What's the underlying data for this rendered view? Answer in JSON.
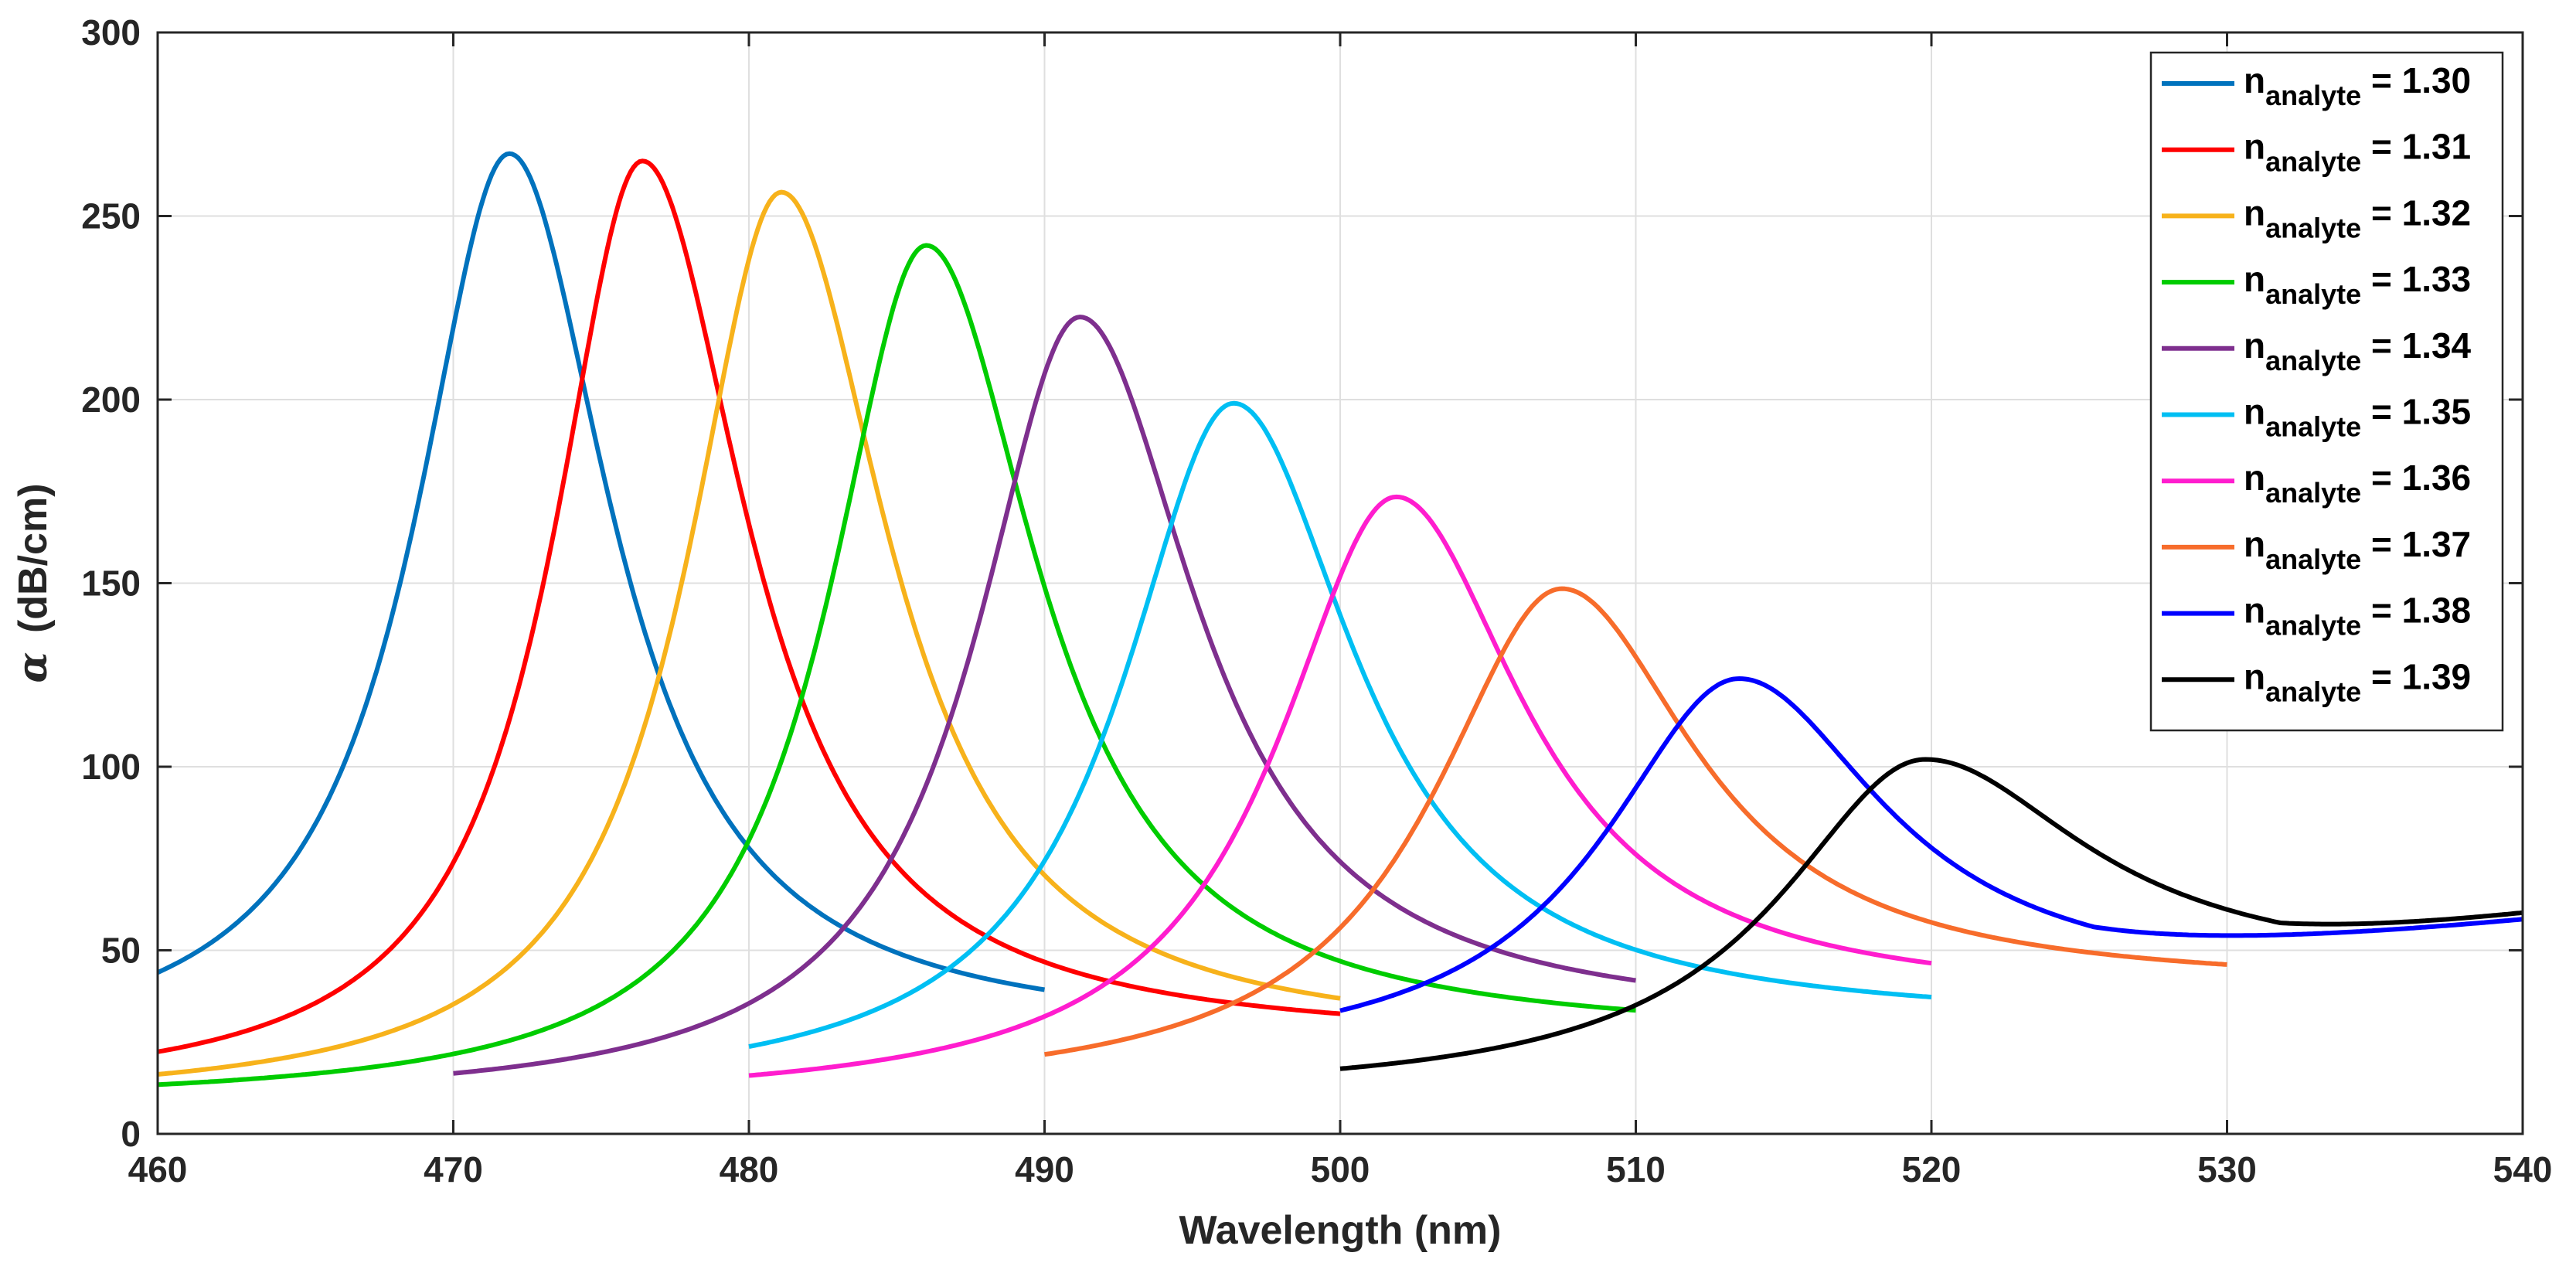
{
  "chart_data": {
    "type": "line",
    "title": "",
    "xlabel": "Wavelength (nm)",
    "ylabel_symbol": "α",
    "ylabel_unit": "(dB/cm)",
    "xlim": [
      460,
      540
    ],
    "ylim": [
      0,
      300
    ],
    "xticks": [
      460,
      470,
      480,
      490,
      500,
      510,
      520,
      530,
      540
    ],
    "yticks": [
      0,
      50,
      100,
      150,
      200,
      250,
      300
    ],
    "grid": true,
    "legend_placement": "top-right",
    "series": [
      {
        "name": "n_analyte = 1.30",
        "legend_main": "n",
        "legend_sub": "analyte",
        "legend_value": " = 1.30",
        "color": "#0072BD",
        "x_range": [
          460,
          490
        ],
        "peak_x": 471.9,
        "peak_y": 267,
        "width_left": 3.9,
        "width_right": 4.2,
        "base_left": 20,
        "base_right": 27,
        "slope": 0
      },
      {
        "name": "n_analyte = 1.31",
        "legend_main": "n",
        "legend_sub": "analyte",
        "legend_value": " = 1.31",
        "color": "#FF0000",
        "x_range": [
          460,
          500
        ],
        "peak_x": 476.4,
        "peak_y": 265,
        "width_left": 3.7,
        "width_right": 4.3,
        "base_left": 10,
        "base_right": 25,
        "slope": 0
      },
      {
        "name": "n_analyte = 1.32",
        "legend_main": "n",
        "legend_sub": "analyte",
        "legend_value": " = 1.32",
        "color": "#F7B21B",
        "x_range": [
          460,
          500
        ],
        "peak_x": 481.1,
        "peak_y": 256.5,
        "width_left": 3.9,
        "width_right": 4.4,
        "base_left": 8,
        "base_right": 25,
        "slope": 0
      },
      {
        "name": "n_analyte = 1.33",
        "legend_main": "n",
        "legend_sub": "analyte",
        "legend_value": " = 1.33",
        "color": "#00CC00",
        "x_range": [
          460,
          510
        ],
        "peak_x": 486.0,
        "peak_y": 242,
        "width_left": 4.0,
        "width_right": 4.6,
        "base_left": 8,
        "base_right": 26,
        "slope": 0
      },
      {
        "name": "n_analyte = 1.34",
        "legend_main": "n",
        "legend_sub": "analyte",
        "legend_value": " = 1.34",
        "color": "#7E2F8E",
        "x_range": [
          470,
          510
        ],
        "peak_x": 491.2,
        "peak_y": 222.5,
        "width_left": 4.3,
        "width_right": 4.8,
        "base_left": 8,
        "base_right": 30,
        "slope": 0
      },
      {
        "name": "n_analyte = 1.35",
        "legend_main": "n",
        "legend_sub": "analyte",
        "legend_value": " = 1.35",
        "color": "#00BFF3",
        "x_range": [
          480,
          520
        ],
        "peak_x": 496.4,
        "peak_y": 199,
        "width_left": 4.6,
        "width_right": 5.0,
        "base_left": 10,
        "base_right": 30,
        "slope": 0
      },
      {
        "name": "n_analyte = 1.36",
        "legend_main": "n",
        "legend_sub": "analyte",
        "legend_value": " = 1.36",
        "color": "#FF1DCE",
        "x_range": [
          480,
          520
        ],
        "peak_x": 501.9,
        "peak_y": 173.5,
        "width_left": 4.9,
        "width_right": 5.2,
        "base_left": 8,
        "base_right": 36,
        "slope": 0
      },
      {
        "name": "n_analyte = 1.37",
        "legend_main": "n",
        "legend_sub": "analyte",
        "legend_value": " = 1.37",
        "color": "#F76C2B",
        "x_range": [
          490,
          530
        ],
        "peak_x": 507.5,
        "peak_y": 148.5,
        "width_left": 5.3,
        "width_right": 5.5,
        "base_left": 10,
        "base_right": 40,
        "slope": 0
      },
      {
        "name": "n_analyte = 1.38",
        "legend_main": "n",
        "legend_sub": "analyte",
        "legend_value": " = 1.38",
        "color": "#0000FF",
        "x_range": [
          500,
          540
        ],
        "peak_x": 513.5,
        "peak_y": 124,
        "width_left": 5.6,
        "width_right": 5.9,
        "base_left": 18,
        "base_right": 40,
        "slope": 1.0
      },
      {
        "name": "n_analyte = 1.39",
        "legend_main": "n",
        "legend_sub": "analyte",
        "legend_value": " = 1.39",
        "color": "#000000",
        "x_range": [
          500,
          540
        ],
        "peak_x": 519.8,
        "peak_y": 102,
        "width_left": 6.0,
        "width_right": 6.6,
        "base_left": 10,
        "base_right": 44,
        "slope": 1.3
      }
    ]
  }
}
